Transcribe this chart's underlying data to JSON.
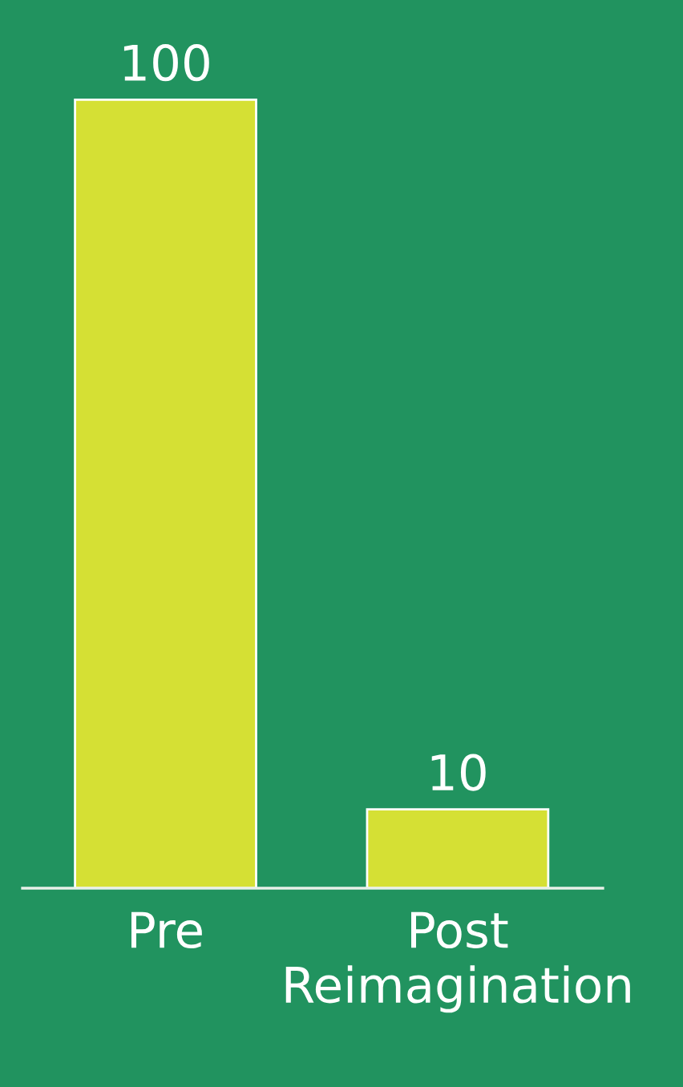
{
  "chart_data": {
    "type": "bar",
    "categories": [
      "Pre",
      "Post\nReimagination"
    ],
    "values": [
      100,
      10
    ],
    "color": "#d5e034",
    "data_labels": true,
    "grid": false,
    "tick_labels": "x"
  }
}
